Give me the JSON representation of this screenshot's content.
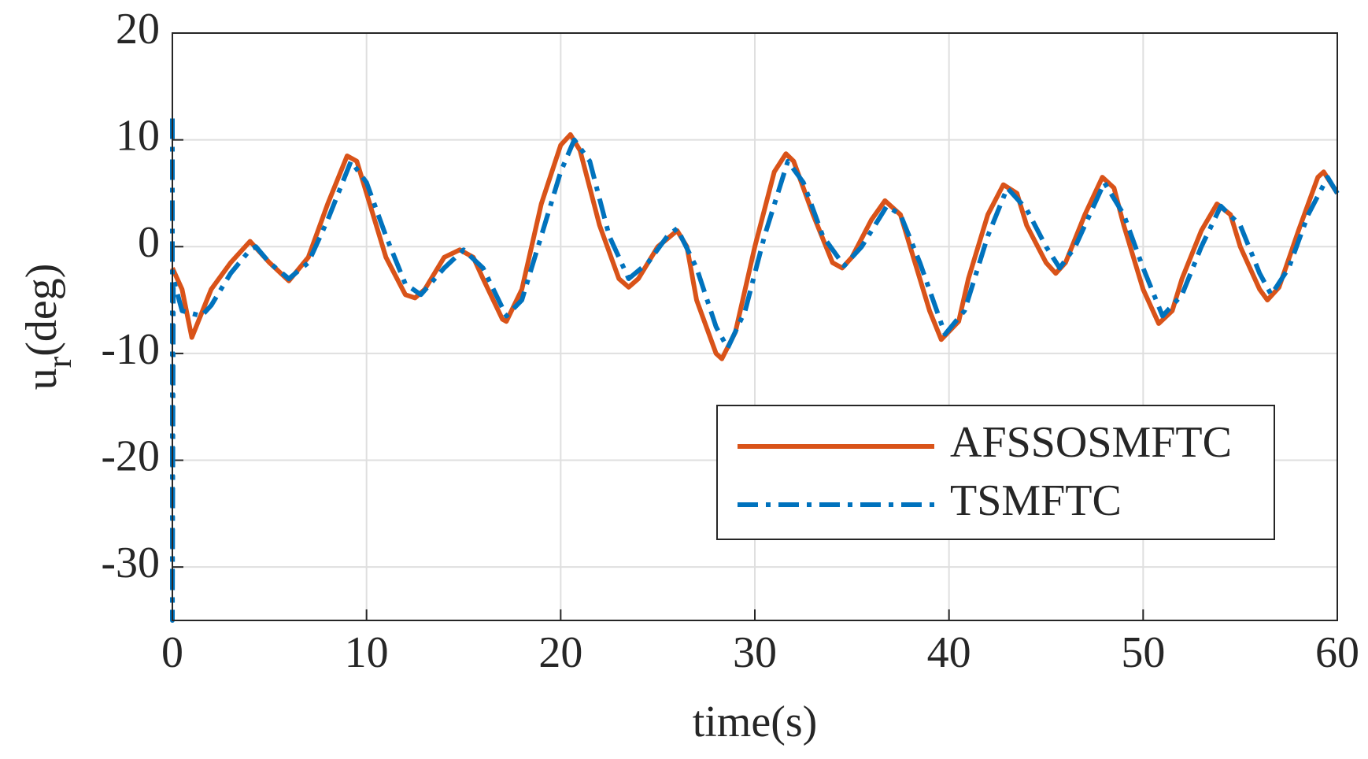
{
  "chart_data": {
    "type": "line",
    "xlabel": "time(s)",
    "ylabel": "u",
    "ylabel_sub": "r",
    "ylabel_unit": "(deg)",
    "xlim": [
      0,
      60
    ],
    "xticks": [
      0,
      10,
      20,
      30,
      40,
      50,
      60
    ],
    "ylim": [
      -35,
      20
    ],
    "yticks": [
      -30,
      -20,
      -10,
      0,
      10,
      20
    ],
    "grid": true,
    "legend": "lower right",
    "series": [
      {
        "name": "AFSSOSMFTC",
        "color": "#d95319",
        "dash": "solid",
        "x": [
          0,
          0.5,
          1,
          2,
          3,
          4,
          5,
          6,
          7,
          8,
          9,
          9.5,
          10,
          11,
          12,
          12.5,
          13,
          14,
          14.8,
          15.5,
          16,
          17,
          17.2,
          18,
          19,
          20,
          20.5,
          21,
          22,
          23,
          23.5,
          24,
          25,
          26,
          26.5,
          27,
          28,
          28.3,
          29,
          30,
          31,
          31.6,
          32,
          33,
          34,
          34.5,
          35,
          36,
          36.7,
          37.5,
          38,
          39,
          39.6,
          40.5,
          41,
          42,
          42.8,
          43.5,
          44,
          45,
          45.5,
          46,
          47,
          47.9,
          48.5,
          49,
          50,
          50.8,
          51.5,
          52,
          53,
          53.8,
          54.5,
          55,
          56,
          56.4,
          57,
          58,
          59,
          59.3,
          60
        ],
        "values": [
          -2,
          -4,
          -8.5,
          -4,
          -1.5,
          0.5,
          -1.5,
          -3.2,
          -1,
          4,
          8.5,
          8,
          5,
          -1,
          -4.5,
          -4.8,
          -4,
          -1,
          -0.3,
          -1,
          -3,
          -6.8,
          -7,
          -4,
          4,
          9.5,
          10.5,
          9,
          2,
          -3,
          -3.8,
          -3,
          0,
          1.5,
          0,
          -5,
          -10,
          -10.5,
          -8,
          0,
          7,
          8.7,
          8,
          3,
          -1.5,
          -2,
          -1,
          2.5,
          4.3,
          3,
          0,
          -6,
          -8.7,
          -7,
          -3,
          3,
          5.8,
          5,
          2,
          -1.5,
          -2.5,
          -1.5,
          3,
          6.5,
          5.5,
          2,
          -4,
          -7.2,
          -6,
          -3,
          1.5,
          4,
          3,
          0,
          -4,
          -5,
          -3.8,
          1.5,
          6.5,
          7,
          5
        ]
      },
      {
        "name": "TSMFTC",
        "color": "#0072bd",
        "dash": "dashdot",
        "x": [
          0,
          0,
          0.05,
          0.5,
          1.5,
          2,
          3,
          4,
          4.3,
          5,
          6,
          7,
          8,
          9.2,
          10,
          11,
          12,
          12.8,
          14,
          15,
          16,
          17.2,
          18,
          19,
          20,
          20.7,
          21.5,
          22.5,
          23.5,
          24.5,
          25.5,
          26,
          27,
          28,
          28.6,
          29.5,
          30.5,
          31.7,
          32.5,
          33.5,
          34.6,
          35.5,
          36.8,
          37.5,
          38.5,
          39.8,
          40.8,
          42,
          43,
          44,
          45,
          45.7,
          46.5,
          48,
          49,
          50,
          51,
          52,
          53,
          54,
          55,
          56,
          56.6,
          57.5,
          58.5,
          59.5,
          60
        ],
        "values": [
          12,
          -35,
          -3,
          -6,
          -6.5,
          -5.5,
          -2.5,
          -0.3,
          0,
          -1.5,
          -3,
          -1.5,
          2.5,
          8,
          6,
          1,
          -3.5,
          -4.5,
          -2,
          -0.3,
          -2,
          -6.5,
          -5,
          1,
          7,
          10,
          8,
          1,
          -3,
          -1.5,
          1,
          1.7,
          -2,
          -7.5,
          -9.5,
          -6,
          1,
          8,
          6,
          1,
          -1.8,
          0,
          3.8,
          3,
          -1.5,
          -8.2,
          -6,
          1,
          5.5,
          3.5,
          0,
          -2,
          0,
          6,
          3,
          -2,
          -6.5,
          -4.5,
          0,
          3.8,
          2,
          -2.5,
          -4.5,
          -2,
          3,
          6.5,
          5
        ]
      }
    ]
  }
}
